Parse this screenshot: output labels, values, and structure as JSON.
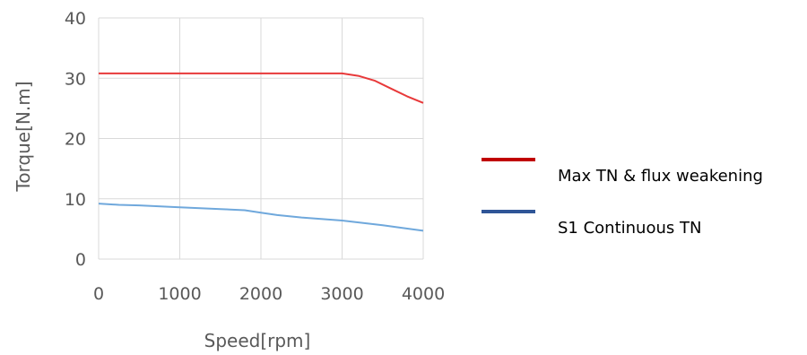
{
  "chart_data": {
    "type": "line",
    "title": "",
    "xlabel": "Speed[rpm]",
    "ylabel": "Torque[N.m]",
    "xlim": [
      0,
      4000
    ],
    "ylim": [
      0,
      40
    ],
    "x_ticks": [
      0,
      1000,
      2000,
      3000,
      4000
    ],
    "y_ticks": [
      0,
      10,
      20,
      30,
      40
    ],
    "grid": true,
    "legend_position": "right",
    "series": [
      {
        "name": "Max TN & flux weakening",
        "color": "#e8393a",
        "legend_color": "#c00000",
        "x": [
          0,
          1000,
          2000,
          3000,
          3200,
          3400,
          3600,
          3800,
          4000
        ],
        "y": [
          30.8,
          30.8,
          30.8,
          30.8,
          30.4,
          29.6,
          28.3,
          27.0,
          25.9
        ]
      },
      {
        "name": "S1 Continuous TN",
        "color": "#6fa8dc",
        "legend_color": "#2f5597",
        "x": [
          0,
          250,
          500,
          1000,
          1500,
          1800,
          2000,
          2200,
          2500,
          3000,
          3500,
          4000
        ],
        "y": [
          9.2,
          9.0,
          8.9,
          8.6,
          8.3,
          8.1,
          7.7,
          7.3,
          6.9,
          6.4,
          5.6,
          4.7
        ]
      }
    ]
  }
}
